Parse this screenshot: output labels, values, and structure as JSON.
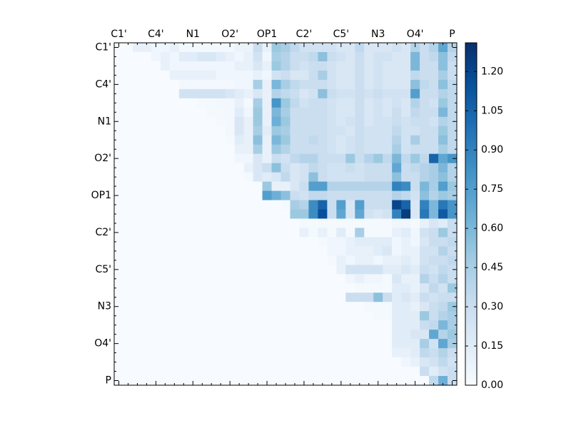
{
  "chart_data": {
    "type": "heatmap",
    "categories": [
      "C1'",
      null,
      null,
      null,
      "C4'",
      null,
      null,
      null,
      "N1",
      null,
      null,
      null,
      "O2'",
      null,
      null,
      null,
      "OP1",
      null,
      null,
      null,
      "C2'",
      null,
      null,
      null,
      "C5'",
      null,
      null,
      null,
      "N3",
      null,
      null,
      null,
      "O4'",
      null,
      null,
      null,
      "P"
    ],
    "clim": [
      0,
      1.31
    ],
    "colormap": [
      "#f7fbff",
      "#deebf7",
      "#c6dbef",
      "#9ecae1",
      "#6baed6",
      "#4292c6",
      "#2171b5",
      "#08519c",
      "#08306b"
    ],
    "colorbar_ticks": [
      {
        "value": 0,
        "label": "0.00"
      },
      {
        "value": 0.15,
        "label": "0.15"
      },
      {
        "value": 0.3,
        "label": "0.30"
      },
      {
        "value": 0.45,
        "label": "0.45"
      },
      {
        "value": 0.6,
        "label": "0.60"
      },
      {
        "value": 0.75,
        "label": "0.75"
      },
      {
        "value": 0.9,
        "label": "0.90"
      },
      {
        "value": 1.05,
        "label": "1.05"
      },
      {
        "value": 1.2,
        "label": "1.20"
      }
    ],
    "z": [
      [
        0,
        0,
        0.1,
        0.1,
        0.05,
        0.05,
        0.1,
        0.03,
        0.03,
        0.03,
        0.03,
        0.03,
        0.03,
        0.08,
        0.08,
        0.3,
        0.1,
        0.5,
        0.45,
        0.35,
        0.25,
        0.25,
        0.25,
        0.25,
        0.2,
        0.2,
        0.35,
        0.2,
        0.2,
        0.2,
        0.25,
        0.2,
        0.4,
        0.3,
        0.4,
        0.7,
        0.4
      ],
      [
        0,
        0,
        0,
        0,
        0.05,
        0.1,
        0.05,
        0.15,
        0.15,
        0.2,
        0.2,
        0.15,
        0.1,
        0.05,
        0.1,
        0.25,
        0.05,
        0.45,
        0.4,
        0.3,
        0.3,
        0.35,
        0.55,
        0.3,
        0.25,
        0.2,
        0.3,
        0.2,
        0.25,
        0.25,
        0.2,
        0.2,
        0.6,
        0.3,
        0.35,
        0.55,
        0.35
      ],
      [
        0,
        0,
        0,
        0,
        0,
        0.1,
        0.05,
        0.05,
        0.05,
        0.05,
        0.05,
        0.05,
        0.05,
        0.1,
        0.1,
        0.2,
        0.1,
        0.5,
        0.4,
        0.3,
        0.25,
        0.3,
        0.3,
        0.25,
        0.2,
        0.2,
        0.3,
        0.2,
        0.25,
        0.2,
        0.2,
        0.2,
        0.6,
        0.3,
        0.3,
        0.55,
        0.3
      ],
      [
        0,
        0,
        0,
        0,
        0,
        0,
        0.1,
        0.1,
        0.1,
        0.1,
        0.1,
        0.05,
        0.05,
        0.05,
        0.05,
        0.1,
        0.05,
        0.25,
        0.3,
        0.2,
        0.2,
        0.3,
        0.45,
        0.25,
        0.2,
        0.2,
        0.3,
        0.2,
        0.25,
        0.2,
        0.2,
        0.2,
        0.35,
        0.3,
        0.3,
        0.45,
        0.3
      ],
      [
        0,
        0,
        0,
        0,
        0,
        0,
        0,
        0.03,
        0.03,
        0.03,
        0.03,
        0.03,
        0.03,
        0.05,
        0.05,
        0.45,
        0.1,
        0.6,
        0.45,
        0.35,
        0.3,
        0.3,
        0.3,
        0.25,
        0.2,
        0.2,
        0.3,
        0.2,
        0.25,
        0.2,
        0.2,
        0.2,
        0.55,
        0.35,
        0.3,
        0.55,
        0.35
      ],
      [
        0,
        0,
        0,
        0,
        0,
        0,
        0,
        0.25,
        0.25,
        0.25,
        0.25,
        0.25,
        0.2,
        0.15,
        0.1,
        0.2,
        0.1,
        0.4,
        0.35,
        0.3,
        0.2,
        0.25,
        0.55,
        0.3,
        0.25,
        0.25,
        0.3,
        0.25,
        0.3,
        0.25,
        0.25,
        0.25,
        0.75,
        0.3,
        0.3,
        0.4,
        0.35
      ],
      [
        0,
        0,
        0,
        0,
        0,
        0,
        0,
        0,
        0,
        0.02,
        0.02,
        0.03,
        0.03,
        0.1,
        0.02,
        0.45,
        0.1,
        0.8,
        0.5,
        0.35,
        0.25,
        0.3,
        0.3,
        0.25,
        0.2,
        0.2,
        0.3,
        0.2,
        0.25,
        0.2,
        0.25,
        0.2,
        0.4,
        0.3,
        0.25,
        0.5,
        0.35
      ],
      [
        0,
        0,
        0,
        0,
        0,
        0,
        0,
        0,
        0,
        0,
        0.02,
        0.02,
        0.03,
        0.15,
        0.05,
        0.5,
        0.1,
        0.6,
        0.45,
        0.3,
        0.3,
        0.3,
        0.3,
        0.25,
        0.2,
        0.2,
        0.3,
        0.2,
        0.25,
        0.2,
        0.3,
        0.2,
        0.35,
        0.3,
        0.3,
        0.6,
        0.35
      ],
      [
        0,
        0,
        0,
        0,
        0,
        0,
        0,
        0,
        0,
        0,
        0,
        0.02,
        0.03,
        0.2,
        0.1,
        0.5,
        0.1,
        0.65,
        0.5,
        0.3,
        0.3,
        0.3,
        0.3,
        0.25,
        0.2,
        0.25,
        0.3,
        0.2,
        0.25,
        0.25,
        0.3,
        0.25,
        0.3,
        0.3,
        0.25,
        0.4,
        0.35
      ],
      [
        0,
        0,
        0,
        0,
        0,
        0,
        0,
        0,
        0,
        0,
        0,
        0,
        0.03,
        0.2,
        0.1,
        0.45,
        0.15,
        0.5,
        0.45,
        0.3,
        0.3,
        0.3,
        0.3,
        0.25,
        0.25,
        0.2,
        0.3,
        0.25,
        0.25,
        0.25,
        0.35,
        0.25,
        0.25,
        0.3,
        0.3,
        0.5,
        0.35
      ],
      [
        0,
        0,
        0,
        0,
        0,
        0,
        0,
        0,
        0,
        0,
        0,
        0,
        0.02,
        0.15,
        0.1,
        0.55,
        0.1,
        0.6,
        0.5,
        0.3,
        0.3,
        0.35,
        0.3,
        0.25,
        0.2,
        0.25,
        0.3,
        0.25,
        0.25,
        0.25,
        0.4,
        0.25,
        0.45,
        0.3,
        0.3,
        0.55,
        0.35
      ],
      [
        0,
        0,
        0,
        0,
        0,
        0,
        0,
        0,
        0,
        0,
        0,
        0,
        0,
        0.1,
        0.1,
        0.45,
        0.1,
        0.5,
        0.4,
        0.3,
        0.3,
        0.3,
        0.3,
        0.25,
        0.2,
        0.25,
        0.3,
        0.25,
        0.25,
        0.25,
        0.45,
        0.25,
        0.3,
        0.3,
        0.3,
        0.45,
        0.35
      ],
      [
        0,
        0,
        0,
        0,
        0,
        0,
        0,
        0,
        0,
        0,
        0,
        0,
        0,
        0.05,
        0.05,
        0.2,
        0.1,
        0.3,
        0.25,
        0.35,
        0.4,
        0.4,
        0.3,
        0.3,
        0.3,
        0.5,
        0.3,
        0.4,
        0.5,
        0.35,
        0.6,
        0.35,
        0.5,
        0.35,
        1.05,
        0.7,
        0.8
      ],
      [
        0,
        0,
        0,
        0,
        0,
        0,
        0,
        0,
        0,
        0,
        0,
        0,
        0,
        0,
        0.1,
        0.2,
        0.3,
        0.55,
        0.3,
        0.2,
        0.25,
        0.35,
        0.3,
        0.25,
        0.25,
        0.3,
        0.25,
        0.3,
        0.3,
        0.3,
        0.7,
        0.3,
        0.35,
        0.4,
        0.45,
        0.6,
        0.4
      ],
      [
        0,
        0,
        0,
        0,
        0,
        0,
        0,
        0,
        0,
        0,
        0,
        0,
        0,
        0,
        0.02,
        0.2,
        0.15,
        0.2,
        0.35,
        0.2,
        0.25,
        0.55,
        0.3,
        0.25,
        0.25,
        0.25,
        0.25,
        0.3,
        0.3,
        0.3,
        0.55,
        0.3,
        0.3,
        0.4,
        0.45,
        0.55,
        0.4
      ],
      [
        0,
        0,
        0,
        0,
        0,
        0,
        0,
        0,
        0,
        0,
        0,
        0,
        0,
        0,
        0,
        0,
        0.5,
        0.1,
        0.1,
        0.2,
        0.3,
        0.75,
        0.75,
        0.4,
        0.4,
        0.4,
        0.4,
        0.4,
        0.4,
        0.4,
        0.9,
        0.85,
        0.3,
        0.6,
        0.45,
        0.75,
        0.5
      ],
      [
        0,
        0,
        0,
        0,
        0,
        0,
        0,
        0,
        0,
        0,
        0,
        0,
        0,
        0,
        0,
        0,
        0.75,
        0.65,
        0.55,
        0.3,
        0.25,
        0.35,
        0.35,
        0.3,
        0.3,
        0.3,
        0.3,
        0.3,
        0.3,
        0.3,
        0.4,
        0.35,
        0.25,
        0.55,
        0.4,
        0.5,
        0.45
      ],
      [
        0,
        0,
        0,
        0,
        0,
        0,
        0,
        0,
        0,
        0,
        0,
        0,
        0,
        0,
        0,
        0,
        0,
        0,
        0.02,
        0.45,
        0.4,
        0.85,
        1.05,
        0.3,
        0.75,
        0.2,
        0.75,
        0.3,
        0.3,
        0.3,
        1.2,
        1.05,
        0.2,
        0.9,
        0.6,
        0.95,
        0.8
      ],
      [
        0,
        0,
        0,
        0,
        0,
        0,
        0,
        0,
        0,
        0,
        0,
        0,
        0,
        0,
        0,
        0,
        0,
        0,
        0,
        0.5,
        0.5,
        0.85,
        1.15,
        0.3,
        0.7,
        0.2,
        0.7,
        0.25,
        0.2,
        0.25,
        0.9,
        1.25,
        0.2,
        0.95,
        0.6,
        1.1,
        0.8
      ],
      [
        0,
        0,
        0,
        0,
        0,
        0,
        0,
        0,
        0,
        0,
        0,
        0,
        0,
        0,
        0,
        0,
        0,
        0,
        0,
        0,
        0.02,
        0.02,
        0.02,
        0.02,
        0.02,
        0.02,
        0.02,
        0.02,
        0.02,
        0.02,
        0.05,
        0.05,
        0.02,
        0.1,
        0.2,
        0.15,
        0.3
      ],
      [
        0,
        0,
        0,
        0,
        0,
        0,
        0,
        0,
        0,
        0,
        0,
        0,
        0,
        0,
        0,
        0,
        0,
        0,
        0,
        0,
        0.1,
        0.02,
        0.1,
        0.02,
        0.15,
        0.02,
        0.45,
        0.02,
        0.02,
        0.02,
        0.1,
        0.15,
        0.05,
        0.25,
        0.3,
        0.5,
        0.3
      ],
      [
        0,
        0,
        0,
        0,
        0,
        0,
        0,
        0,
        0,
        0,
        0,
        0,
        0,
        0,
        0,
        0,
        0,
        0,
        0,
        0,
        0,
        0,
        0.02,
        0.05,
        0.05,
        0.1,
        0.15,
        0.15,
        0.15,
        0.15,
        0.05,
        0.1,
        0.05,
        0.2,
        0.3,
        0.3,
        0.35
      ],
      [
        0,
        0,
        0,
        0,
        0,
        0,
        0,
        0,
        0,
        0,
        0,
        0,
        0,
        0,
        0,
        0,
        0,
        0,
        0,
        0,
        0,
        0,
        0,
        0.05,
        0.05,
        0.1,
        0.1,
        0.1,
        0.15,
        0.2,
        0.05,
        0.1,
        0.1,
        0.25,
        0.25,
        0.4,
        0.3
      ],
      [
        0,
        0,
        0,
        0,
        0,
        0,
        0,
        0,
        0,
        0,
        0,
        0,
        0,
        0,
        0,
        0,
        0,
        0,
        0,
        0,
        0,
        0,
        0,
        0.02,
        0.1,
        0.05,
        0.1,
        0.1,
        0.05,
        0.1,
        0.1,
        0.15,
        0.1,
        0.25,
        0.3,
        0.3,
        0.35
      ],
      [
        0,
        0,
        0,
        0,
        0,
        0,
        0,
        0,
        0,
        0,
        0,
        0,
        0,
        0,
        0,
        0,
        0,
        0,
        0,
        0,
        0,
        0,
        0,
        0,
        0.1,
        0.25,
        0.25,
        0.25,
        0.25,
        0.15,
        0.15,
        0.2,
        0.15,
        0.3,
        0.25,
        0.35,
        0.3
      ],
      [
        0,
        0,
        0,
        0,
        0,
        0,
        0,
        0,
        0,
        0,
        0,
        0,
        0,
        0,
        0,
        0,
        0,
        0,
        0,
        0,
        0,
        0,
        0,
        0,
        0,
        0.05,
        0.1,
        0.05,
        0.05,
        0.02,
        0.2,
        0.1,
        0.1,
        0.4,
        0.3,
        0.4,
        0.3
      ],
      [
        0,
        0,
        0,
        0,
        0,
        0,
        0,
        0,
        0,
        0,
        0,
        0,
        0,
        0,
        0,
        0,
        0,
        0,
        0,
        0,
        0,
        0,
        0,
        0,
        0,
        0,
        0.02,
        0.02,
        0.02,
        0.02,
        0.15,
        0.15,
        0.1,
        0.2,
        0.35,
        0.25,
        0.5
      ],
      [
        0,
        0,
        0,
        0,
        0,
        0,
        0,
        0,
        0,
        0,
        0,
        0,
        0,
        0,
        0,
        0,
        0,
        0,
        0,
        0,
        0,
        0,
        0,
        0,
        0,
        0.3,
        0.3,
        0.3,
        0.55,
        0.3,
        0.15,
        0.2,
        0.15,
        0.3,
        0.25,
        0.3,
        0.3
      ],
      [
        0,
        0,
        0,
        0,
        0,
        0,
        0,
        0,
        0,
        0,
        0,
        0,
        0,
        0,
        0,
        0,
        0,
        0,
        0,
        0,
        0,
        0,
        0,
        0,
        0,
        0,
        0,
        0.02,
        0.02,
        0.02,
        0.15,
        0.15,
        0.1,
        0.2,
        0.3,
        0.35,
        0.5
      ],
      [
        0,
        0,
        0,
        0,
        0,
        0,
        0,
        0,
        0,
        0,
        0,
        0,
        0,
        0,
        0,
        0,
        0,
        0,
        0,
        0,
        0,
        0,
        0,
        0,
        0,
        0,
        0,
        0,
        0.02,
        0.02,
        0.15,
        0.15,
        0.15,
        0.5,
        0.3,
        0.4,
        0.45
      ],
      [
        0,
        0,
        0,
        0,
        0,
        0,
        0,
        0,
        0,
        0,
        0,
        0,
        0,
        0,
        0,
        0,
        0,
        0,
        0,
        0,
        0,
        0,
        0,
        0,
        0,
        0,
        0,
        0,
        0,
        0,
        0.15,
        0.15,
        0.15,
        0.3,
        0.35,
        0.6,
        0.45
      ],
      [
        0,
        0,
        0,
        0,
        0,
        0,
        0,
        0,
        0,
        0,
        0,
        0,
        0,
        0,
        0,
        0,
        0,
        0,
        0,
        0,
        0,
        0,
        0,
        0,
        0,
        0,
        0,
        0,
        0,
        0,
        0.15,
        0.15,
        0.2,
        0.2,
        0.7,
        0.4,
        0.5
      ],
      [
        0,
        0,
        0,
        0,
        0,
        0,
        0,
        0,
        0,
        0,
        0,
        0,
        0,
        0,
        0,
        0,
        0,
        0,
        0,
        0,
        0,
        0,
        0,
        0,
        0,
        0,
        0,
        0,
        0,
        0,
        0.15,
        0.15,
        0.15,
        0.45,
        0.25,
        0.7,
        0.45
      ],
      [
        0,
        0,
        0,
        0,
        0,
        0,
        0,
        0,
        0,
        0,
        0,
        0,
        0,
        0,
        0,
        0,
        0,
        0,
        0,
        0,
        0,
        0,
        0,
        0,
        0,
        0,
        0,
        0,
        0,
        0,
        0.1,
        0.1,
        0.15,
        0.35,
        0.3,
        0.4,
        0.3
      ],
      [
        0,
        0,
        0,
        0,
        0,
        0,
        0,
        0,
        0,
        0,
        0,
        0,
        0,
        0,
        0,
        0,
        0,
        0,
        0,
        0,
        0,
        0,
        0,
        0,
        0,
        0,
        0,
        0,
        0,
        0,
        0,
        0.05,
        0.1,
        0.2,
        0.25,
        0.35,
        0.25
      ],
      [
        0,
        0,
        0,
        0,
        0,
        0,
        0,
        0,
        0,
        0,
        0,
        0,
        0,
        0,
        0,
        0,
        0,
        0,
        0,
        0,
        0,
        0,
        0,
        0,
        0,
        0,
        0,
        0,
        0,
        0,
        0,
        0,
        0,
        0.3,
        0.15,
        0.25,
        0.3
      ],
      [
        0,
        0,
        0,
        0,
        0,
        0,
        0,
        0,
        0,
        0,
        0,
        0,
        0,
        0,
        0,
        0,
        0,
        0,
        0,
        0,
        0,
        0,
        0,
        0,
        0,
        0,
        0,
        0,
        0,
        0,
        0,
        0,
        0,
        0,
        0.35,
        0.65,
        0.3
      ]
    ]
  }
}
